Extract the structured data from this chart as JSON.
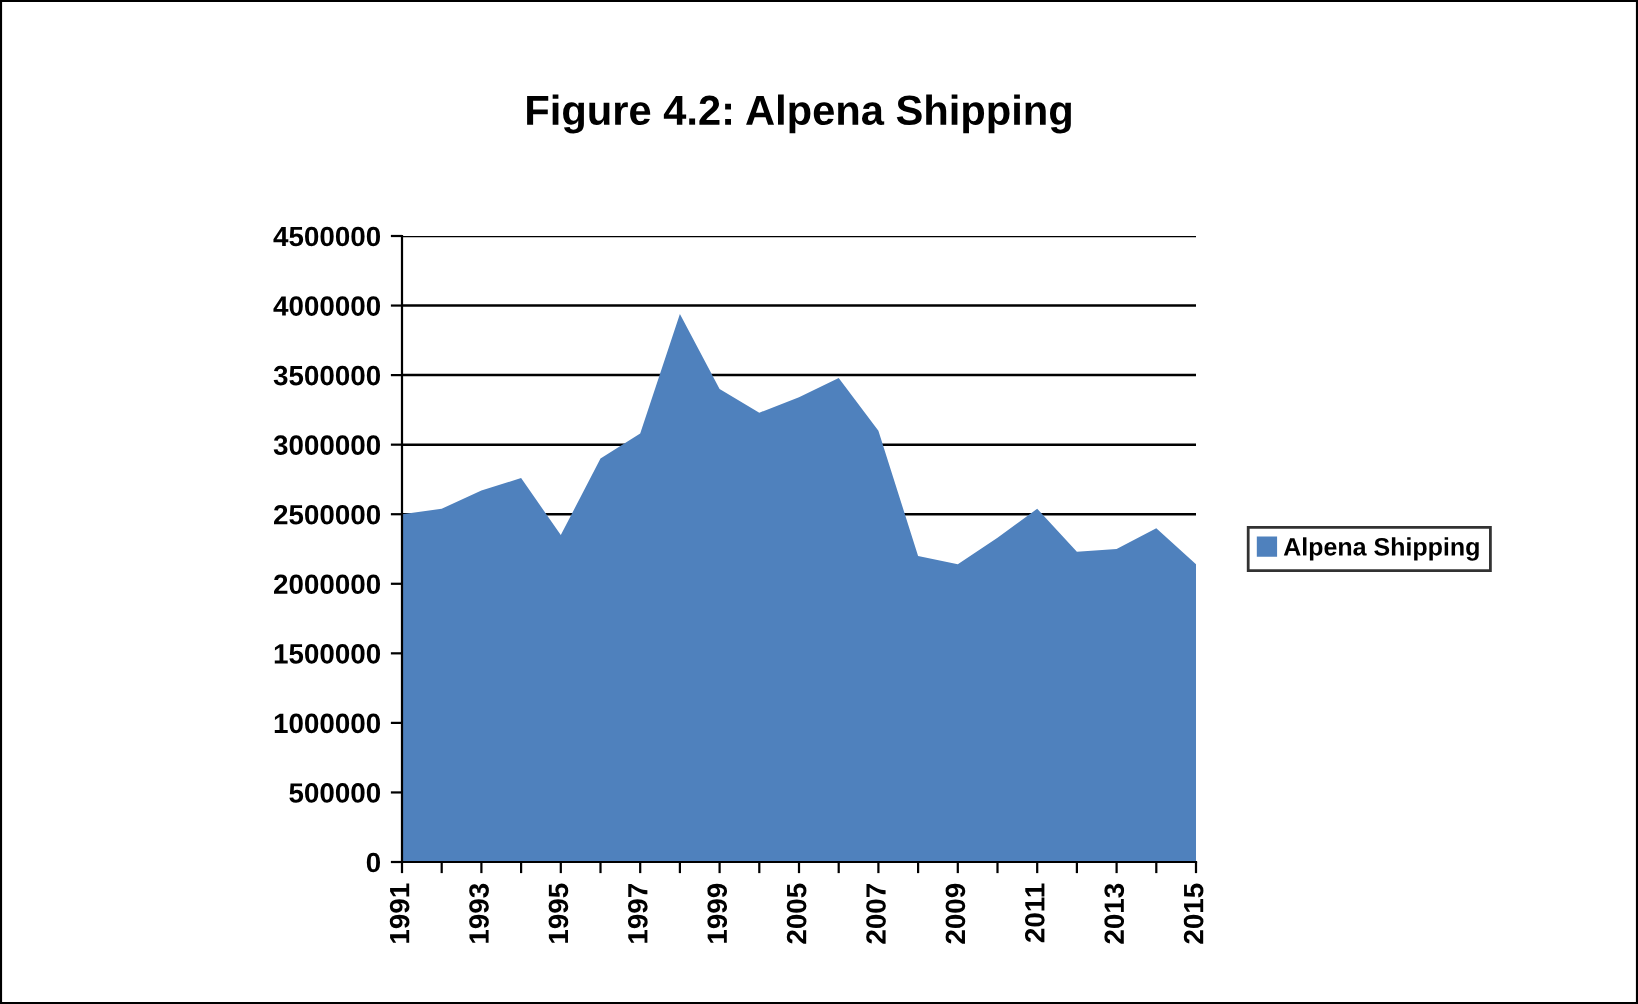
{
  "chart_data": {
    "type": "area",
    "title": "Figure 4.2: Alpena Shipping",
    "categories": [
      "1991",
      null,
      "1993",
      null,
      "1995",
      null,
      "1997",
      null,
      "1999",
      null,
      "2005",
      null,
      "2007",
      null,
      "2009",
      null,
      "2011",
      null,
      "2013",
      null,
      "2015"
    ],
    "series": [
      {
        "name": "Alpena Shipping",
        "color": "#4f81bd",
        "values": [
          2500000,
          2540000,
          2670000,
          2760000,
          2350000,
          2900000,
          3080000,
          3940000,
          3400000,
          3230000,
          3340000,
          3480000,
          3100000,
          2200000,
          2140000,
          2330000,
          2540000,
          2230000,
          2250000,
          2400000,
          2140000
        ]
      }
    ],
    "ylim": [
      0,
      4500000
    ],
    "yticks": [
      0,
      500000,
      1000000,
      1500000,
      2000000,
      2500000,
      3000000,
      3500000,
      4000000,
      4500000
    ],
    "grid": "y",
    "legend": "right"
  }
}
